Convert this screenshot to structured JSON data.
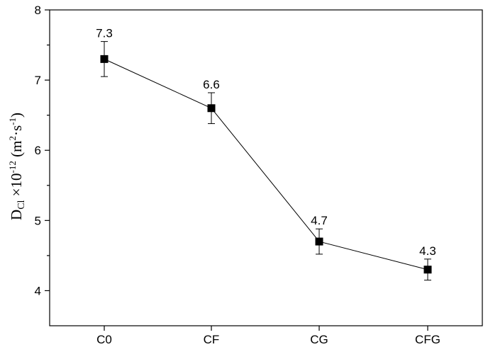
{
  "chart_data": {
    "type": "line",
    "categories": [
      "C0",
      "CF",
      "CG",
      "CFG"
    ],
    "values": [
      7.3,
      6.6,
      4.7,
      4.3
    ],
    "errors": [
      0.25,
      0.22,
      0.18,
      0.15
    ],
    "data_labels": [
      "7.3",
      "6.6",
      "4.7",
      "4.3"
    ],
    "ylim": [
      3.5,
      8
    ],
    "yticks": [
      4,
      5,
      6,
      7,
      8
    ],
    "ylabel": {
      "main": "D",
      "sub": "Cl",
      "mid": " ×10",
      "exp": "-12",
      "unit_open": " (m",
      "unit_exp1": "2",
      "unit_mid": "·s",
      "unit_exp2": "-1",
      "unit_close": ")"
    },
    "title": "",
    "xlabel": "",
    "marker": "square",
    "grid": false,
    "legend": "none",
    "color": "#000000"
  }
}
